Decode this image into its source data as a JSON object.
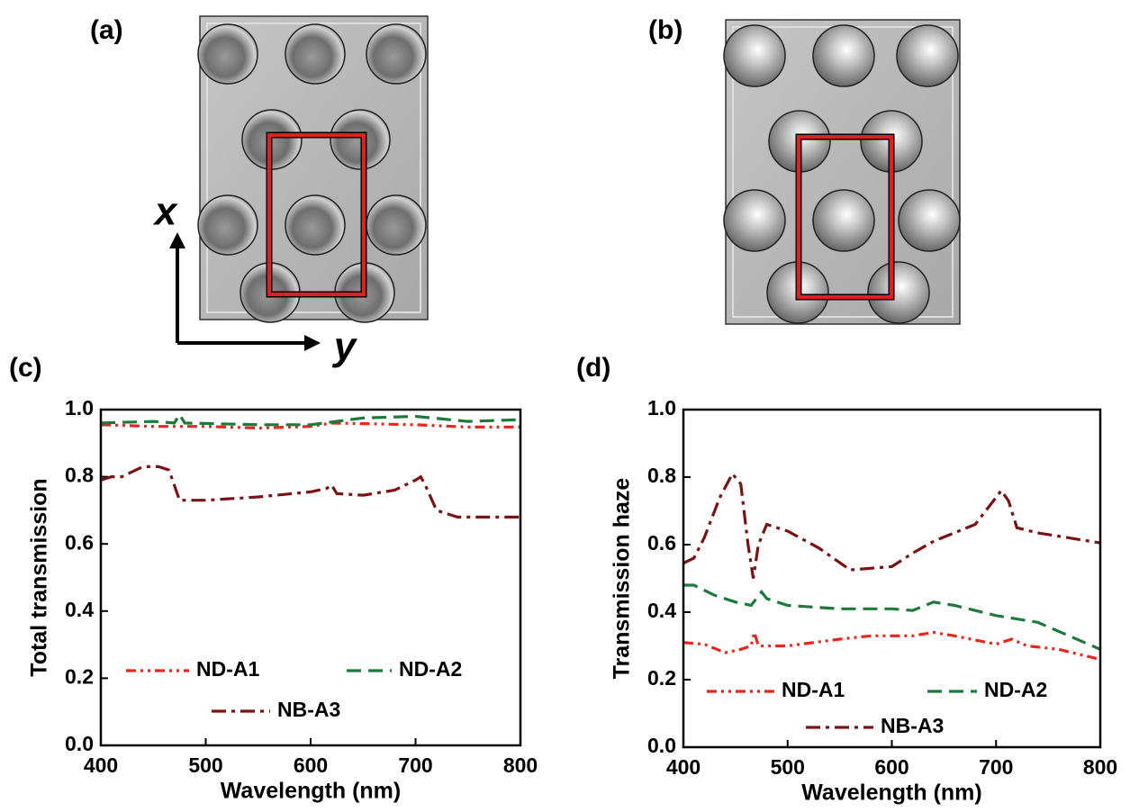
{
  "panels": {
    "a": {
      "label": "(a)"
    },
    "b": {
      "label": "(b)"
    },
    "axes": {
      "x": "x",
      "y": "y"
    }
  },
  "chart_data": [
    {
      "type": "line",
      "label": "(c)",
      "x_label": "Wavelength (nm)",
      "y_label": "Total transmission",
      "xlim": [
        400,
        800
      ],
      "xticks": [
        400,
        500,
        600,
        700,
        800
      ],
      "ylim": [
        0,
        1
      ],
      "yticks": [
        {
          "value": 0,
          "label": "0.0"
        },
        0.2,
        0.4,
        0.6,
        0.8,
        {
          "value": 1,
          "label": "1.0"
        }
      ],
      "series": [
        {
          "name": "ND-A1",
          "color": "#e8281e",
          "dash": "dash-dot-dot",
          "x": [
            400,
            450,
            500,
            550,
            600,
            620,
            700,
            750,
            800
          ],
          "values": [
            0.955,
            0.95,
            0.95,
            0.945,
            0.95,
            0.96,
            0.955,
            0.948,
            0.948
          ]
        },
        {
          "name": "ND-A2",
          "color": "#1e7a3a",
          "dash": "dash",
          "x": [
            400,
            450,
            470,
            475,
            480,
            550,
            600,
            650,
            700,
            750,
            800
          ],
          "values": [
            0.96,
            0.965,
            0.96,
            0.985,
            0.96,
            0.955,
            0.955,
            0.975,
            0.98,
            0.965,
            0.97
          ]
        },
        {
          "name": "NB-A3",
          "color": "#7a1414",
          "dash": "dash-dot",
          "x": [
            400,
            410,
            420,
            440,
            455,
            465,
            475,
            500,
            550,
            600,
            615,
            620,
            625,
            650,
            680,
            700,
            705,
            710,
            720,
            740,
            800
          ],
          "values": [
            0.79,
            0.8,
            0.8,
            0.83,
            0.83,
            0.82,
            0.73,
            0.73,
            0.74,
            0.755,
            0.765,
            0.775,
            0.75,
            0.745,
            0.76,
            0.79,
            0.8,
            0.77,
            0.7,
            0.68,
            0.68
          ]
        }
      ]
    },
    {
      "type": "line",
      "label": "(d)",
      "x_label": "Wavelength (nm)",
      "y_label": "Transmission haze",
      "xlim": [
        400,
        800
      ],
      "xticks": [
        400,
        500,
        600,
        700,
        800
      ],
      "ylim": [
        0,
        1
      ],
      "yticks": [
        {
          "value": 0,
          "label": "0.0"
        },
        0.2,
        0.4,
        0.6,
        0.8,
        {
          "value": 1,
          "label": "1.0"
        }
      ],
      "series": [
        {
          "name": "ND-A1",
          "color": "#e8281e",
          "dash": "dash-dot-dot",
          "x": [
            400,
            420,
            440,
            455,
            465,
            468,
            472,
            500,
            550,
            580,
            620,
            640,
            660,
            700,
            715,
            730,
            760,
            800
          ],
          "values": [
            0.31,
            0.305,
            0.28,
            0.29,
            0.3,
            0.34,
            0.3,
            0.3,
            0.32,
            0.33,
            0.33,
            0.34,
            0.33,
            0.305,
            0.32,
            0.3,
            0.29,
            0.26
          ]
        },
        {
          "name": "ND-A2",
          "color": "#1e7a3a",
          "dash": "dash",
          "x": [
            400,
            410,
            430,
            450,
            465,
            475,
            480,
            500,
            550,
            600,
            620,
            640,
            660,
            700,
            740,
            770,
            800
          ],
          "values": [
            0.48,
            0.48,
            0.45,
            0.43,
            0.42,
            0.46,
            0.44,
            0.42,
            0.41,
            0.41,
            0.405,
            0.43,
            0.42,
            0.39,
            0.37,
            0.33,
            0.29
          ]
        },
        {
          "name": "NB-A3",
          "color": "#7a1414",
          "dash": "dash-dot",
          "x": [
            400,
            410,
            420,
            435,
            447,
            455,
            462,
            467,
            472,
            480,
            500,
            530,
            560,
            600,
            620,
            640,
            680,
            700,
            705,
            712,
            720,
            740,
            800
          ],
          "values": [
            0.545,
            0.56,
            0.62,
            0.74,
            0.81,
            0.78,
            0.6,
            0.5,
            0.6,
            0.66,
            0.64,
            0.59,
            0.525,
            0.535,
            0.575,
            0.61,
            0.66,
            0.74,
            0.76,
            0.73,
            0.65,
            0.635,
            0.605
          ]
        }
      ]
    }
  ]
}
